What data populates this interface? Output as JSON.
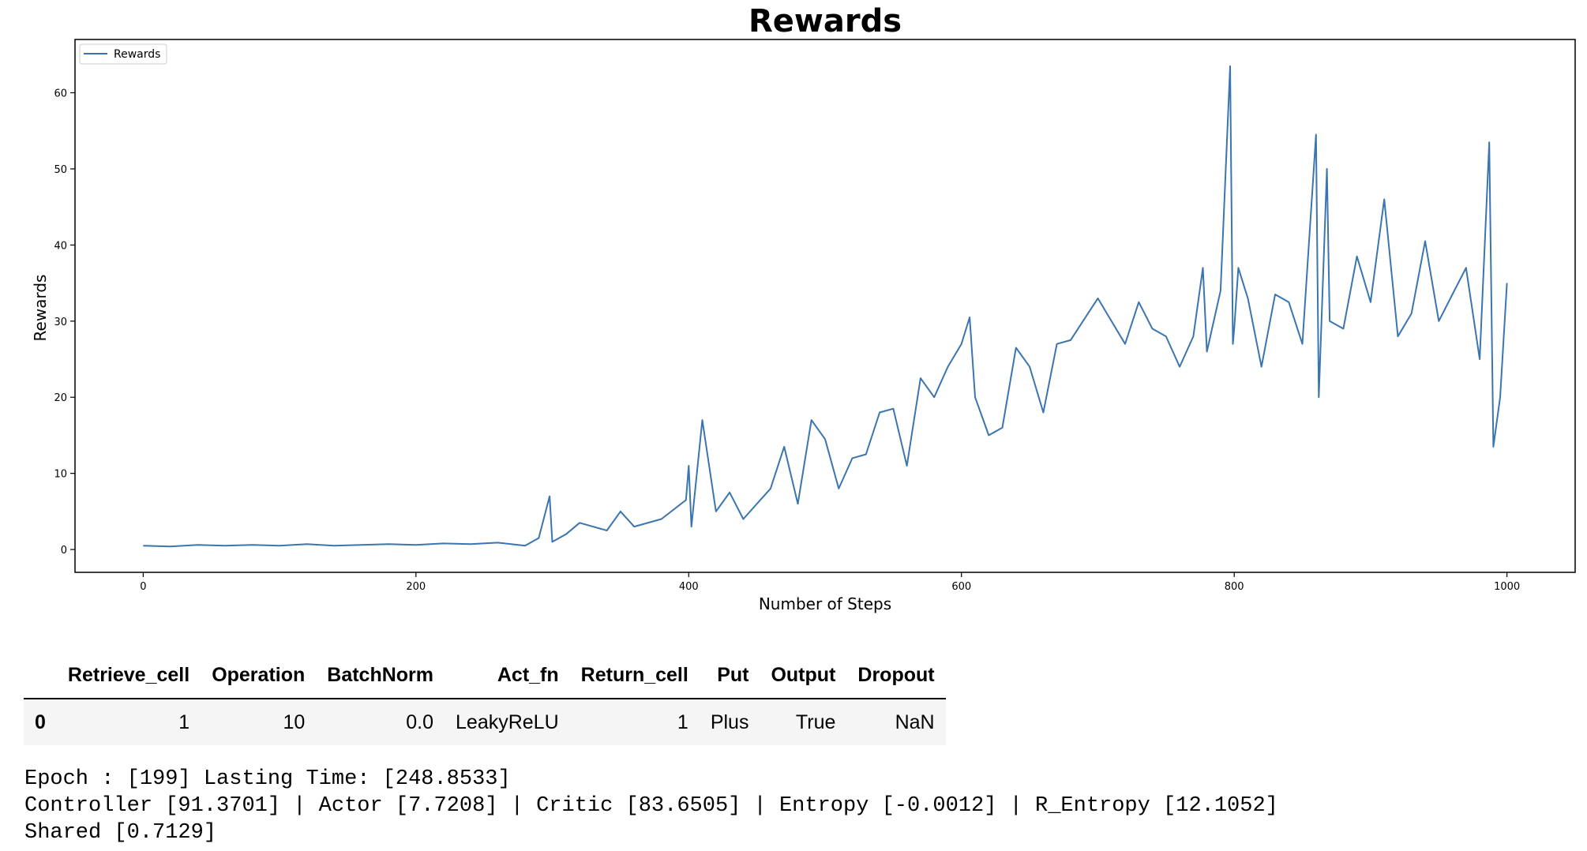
{
  "chart_data": {
    "type": "line",
    "title": "Rewards",
    "xlabel": "Number of Steps",
    "ylabel": "Rewards",
    "xlim": [
      -50,
      1050
    ],
    "ylim": [
      -3,
      67
    ],
    "xticks": [
      "0",
      "200",
      "400",
      "600",
      "800",
      "1000"
    ],
    "xtick_values": [
      0,
      200,
      400,
      600,
      800,
      1000
    ],
    "yticks": [
      "0",
      "10",
      "20",
      "30",
      "40",
      "50",
      "60"
    ],
    "ytick_values": [
      0,
      10,
      20,
      30,
      40,
      50,
      60
    ],
    "grid": false,
    "legend_position": "top-left",
    "series": [
      {
        "name": "Rewards",
        "color": "#3b75af",
        "x": [
          0,
          20,
          40,
          60,
          80,
          100,
          120,
          140,
          160,
          180,
          200,
          220,
          240,
          260,
          280,
          290,
          298,
          300,
          310,
          320,
          340,
          350,
          360,
          380,
          398,
          400,
          402,
          410,
          420,
          430,
          440,
          460,
          470,
          480,
          490,
          500,
          510,
          520,
          530,
          540,
          550,
          560,
          570,
          580,
          590,
          600,
          606,
          610,
          620,
          630,
          640,
          650,
          660,
          670,
          680,
          700,
          720,
          730,
          740,
          750,
          760,
          770,
          777,
          780,
          790,
          797,
          799,
          800,
          803,
          810,
          820,
          830,
          840,
          850,
          860,
          862,
          868,
          870,
          880,
          890,
          900,
          910,
          920,
          930,
          940,
          950,
          960,
          970,
          980,
          987,
          990,
          995,
          1000
        ],
        "values": [
          0.5,
          0.4,
          0.6,
          0.5,
          0.6,
          0.5,
          0.7,
          0.5,
          0.6,
          0.7,
          0.6,
          0.8,
          0.7,
          0.9,
          0.5,
          1.5,
          7.0,
          1.0,
          2.0,
          3.5,
          2.5,
          5.0,
          3.0,
          4.0,
          6.5,
          11.0,
          3.0,
          17.0,
          5.0,
          7.5,
          4.0,
          8.0,
          13.5,
          6.0,
          17.0,
          14.5,
          8.0,
          12.0,
          12.5,
          18.0,
          18.5,
          11.0,
          22.5,
          20.0,
          24.0,
          27.0,
          30.5,
          20.0,
          15.0,
          16.0,
          26.5,
          24.0,
          18.0,
          27.0,
          27.5,
          33.0,
          27.0,
          32.5,
          29.0,
          28.0,
          24.0,
          28.0,
          37.0,
          26.0,
          34.0,
          63.5,
          27.0,
          29.0,
          37.0,
          33.0,
          24.0,
          33.5,
          32.5,
          27.0,
          54.5,
          20.0,
          50.0,
          30.0,
          29.0,
          38.5,
          32.5,
          46.0,
          28.0,
          31.0,
          40.5,
          30.0,
          33.5,
          37.0,
          25.0,
          53.5,
          13.5,
          20.0,
          35.0
        ]
      }
    ]
  },
  "table": {
    "headers": [
      "",
      "Retrieve_cell",
      "Operation",
      "BatchNorm",
      "Act_fn",
      "Return_cell",
      "Put",
      "Output",
      "Dropout"
    ],
    "row": {
      "index": "0",
      "retrieve_cell": "1",
      "operation": "10",
      "batchnorm": "0.0",
      "act_fn": "LeakyReLU",
      "return_cell": "1",
      "put": "Plus",
      "output": "True",
      "dropout": "NaN"
    }
  },
  "log": {
    "line1": "Epoch : [199] Lasting Time: [248.8533]",
    "line2": "Controller [91.3701] | Actor [7.7208] | Critic [83.6505] | Entropy [-0.0012] | R_Entropy [12.1052]",
    "line3": "Shared [0.7129]"
  }
}
